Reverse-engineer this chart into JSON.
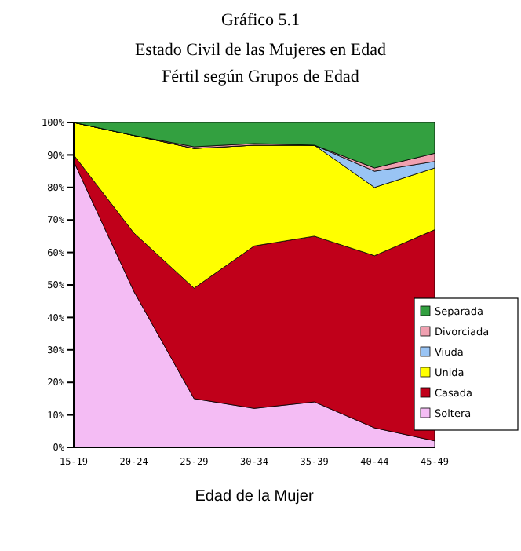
{
  "chart_data": {
    "type": "area",
    "stacked": true,
    "title": "Gráfico 5.1",
    "subtitle": "Estado Civil de las Mujeres en Edad\nFértil según Grupos de Edad",
    "xlabel": "Edad de la Mujer",
    "categories": [
      "15-19",
      "20-24",
      "25-29",
      "30-34",
      "35-39",
      "40-44",
      "45-49"
    ],
    "series": [
      {
        "name": "Soltera",
        "color": "#f4bcf4",
        "values": [
          88,
          48,
          15,
          12,
          14,
          6,
          2
        ]
      },
      {
        "name": "Casada",
        "color": "#c0001a",
        "values": [
          2,
          18,
          34,
          50,
          51,
          53,
          65
        ]
      },
      {
        "name": "Unida",
        "color": "#ffff00",
        "values": [
          10,
          30,
          43,
          31,
          28,
          21,
          19
        ]
      },
      {
        "name": "Viuda",
        "color": "#99c4f4",
        "values": [
          0,
          0,
          0,
          0,
          0,
          5,
          2
        ]
      },
      {
        "name": "Divorciada",
        "color": "#f0a0b0",
        "values": [
          0,
          0,
          0.5,
          0.5,
          0,
          1,
          2.5
        ]
      },
      {
        "name": "Separada",
        "color": "#33a040",
        "values": [
          0,
          4,
          7.5,
          6.5,
          7,
          14,
          9.5
        ]
      }
    ],
    "ylim": [
      0,
      100
    ],
    "yticks": [
      {
        "value": 0,
        "label": "0%"
      },
      {
        "value": 10,
        "label": "10%"
      },
      {
        "value": 20,
        "label": "20%"
      },
      {
        "value": 30,
        "label": "30%"
      },
      {
        "value": 40,
        "label": "40%"
      },
      {
        "value": 50,
        "label": "50%"
      },
      {
        "value": 60,
        "label": "60%"
      },
      {
        "value": 70,
        "label": "70%"
      },
      {
        "value": 80,
        "label": "80%"
      },
      {
        "value": 90,
        "label": "90%"
      },
      {
        "value": 100,
        "label": "100%"
      }
    ],
    "legend": "right",
    "grid": false
  }
}
